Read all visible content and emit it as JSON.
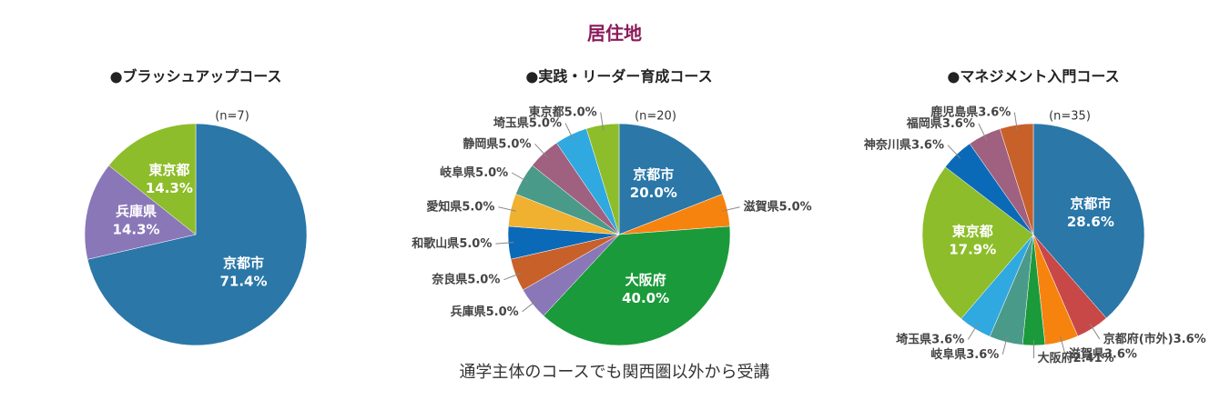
{
  "title": "居住地",
  "caption": "通学主体のコースでも関西圏以外から受講",
  "chart_data": [
    {
      "type": "pie",
      "title": "●ブラッシュアップコース",
      "note": "(n=7)",
      "categories": [
        "京都市",
        "兵庫県",
        "東京都"
      ],
      "values": [
        71.4,
        14.3,
        14.3
      ],
      "value_labels": [
        "71.4%",
        "14.3%",
        "14.3%"
      ],
      "colors": [
        "#2a77a8",
        "#8a77b8",
        "#8dbd2a"
      ]
    },
    {
      "type": "pie",
      "title": "●実践・リーダー育成コース",
      "note": "(n=20)",
      "categories": [
        "京都市",
        "滋賀県",
        "大阪府",
        "兵庫県",
        "奈良県",
        "和歌山県",
        "愛知県",
        "岐阜県",
        "静岡県",
        "埼玉県",
        "東京都"
      ],
      "values": [
        20.0,
        5.0,
        40.0,
        5.0,
        5.0,
        5.0,
        5.0,
        5.0,
        5.0,
        5.0,
        5.0
      ],
      "value_labels": [
        "20.0%",
        "5.0%",
        "40.0%",
        "5.0%",
        "5.0%",
        "5.0%",
        "5.0%",
        "5.0%",
        "5.0%",
        "5.0%",
        "5.0%"
      ],
      "colors": [
        "#2a77a8",
        "#f7830f",
        "#1a9a3a",
        "#8a77b8",
        "#c8602a",
        "#0a6ab8",
        "#f0b030",
        "#4a9a8a",
        "#a06080",
        "#30a8e0",
        "#8dbd2a"
      ]
    },
    {
      "type": "pie",
      "title": "●マネジメント入門コース",
      "note": "(n=35)",
      "categories": [
        "京都市",
        "京都府(市外)",
        "滋賀県",
        "大阪府",
        "岐阜県",
        "埼玉県",
        "東京都",
        "神奈川県",
        "福岡県",
        "鹿児島県"
      ],
      "values": [
        28.6,
        3.6,
        3.6,
        2.41,
        3.6,
        3.6,
        17.9,
        3.6,
        3.6,
        3.6
      ],
      "value_labels": [
        "28.6%",
        "3.6%",
        "3.6%",
        "2.41%",
        "3.6%",
        "3.6%",
        "17.9%",
        "3.6%",
        "3.6%",
        "3.6%"
      ],
      "colors": [
        "#2a77a8",
        "#c84848",
        "#f7830f",
        "#1a9a3a",
        "#4a9a8a",
        "#30a8e0",
        "#8dbd2a",
        "#0a6ab8",
        "#a06080",
        "#c8602a"
      ]
    }
  ]
}
